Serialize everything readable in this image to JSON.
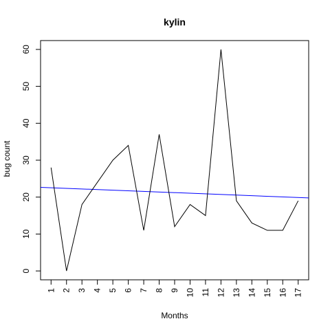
{
  "chart_data": {
    "type": "line",
    "title": "kylin",
    "xlabel": "Months",
    "ylabel": "bug count",
    "x": [
      1,
      2,
      3,
      4,
      5,
      6,
      7,
      8,
      9,
      10,
      11,
      12,
      13,
      14,
      15,
      16,
      17
    ],
    "xticks": [
      "1",
      "2",
      "3",
      "4",
      "5",
      "6",
      "7",
      "8",
      "9",
      "10",
      "11",
      "12",
      "13",
      "14",
      "15",
      "16",
      "17"
    ],
    "yticks": [
      "0",
      "10",
      "20",
      "30",
      "40",
      "50",
      "60"
    ],
    "xlim": [
      0.32,
      17.68
    ],
    "ylim": [
      -2.4,
      62.4
    ],
    "series": [
      {
        "values": [
          28,
          0,
          18,
          24,
          30,
          34,
          11,
          37,
          12,
          18,
          15,
          60,
          19,
          13,
          11,
          11,
          19
        ],
        "color": "#000000"
      }
    ],
    "trend_line": {
      "color": "#0000ff",
      "intercept": 22.7,
      "slope": -0.165
    },
    "grid": false,
    "box": true
  }
}
